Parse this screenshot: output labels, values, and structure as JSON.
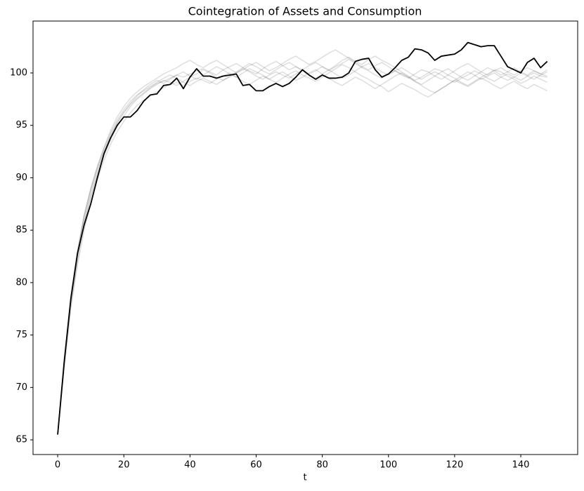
{
  "chart_data": {
    "type": "line",
    "title": "Cointegration of Assets and Consumption",
    "x_label": "t",
    "x": [
      0,
      2,
      4,
      6,
      8,
      10,
      12,
      14,
      16,
      18,
      20,
      22,
      24,
      26,
      28,
      30,
      32,
      34,
      36,
      38,
      40,
      42,
      44,
      46,
      48,
      50,
      52,
      54,
      56,
      58,
      60,
      62,
      64,
      66,
      68,
      70,
      72,
      74,
      76,
      78,
      80,
      82,
      84,
      86,
      88,
      90,
      92,
      94,
      96,
      98,
      100,
      102,
      104,
      106,
      108,
      110,
      112,
      114,
      116,
      118,
      120,
      122,
      124,
      126,
      128,
      130,
      132,
      134,
      136,
      138,
      140,
      142,
      144,
      146,
      148
    ],
    "xlim": [
      -7.45,
      157.2
    ],
    "xticks": [
      0,
      20,
      40,
      60,
      80,
      100,
      120,
      140
    ],
    "ylim": [
      63.6,
      104.95
    ],
    "yticks": [
      65,
      70,
      75,
      80,
      85,
      90,
      95,
      100
    ],
    "series": [
      {
        "color": "#000000",
        "opacity": 0.13,
        "values": [
          65.5,
          72.3,
          78.2,
          82.4,
          85.8,
          88.3,
          90.5,
          92.4,
          93.9,
          95.2,
          96.2,
          97,
          97.6,
          98.1,
          98.6,
          99,
          99.2,
          99.5,
          99.8,
          99.6,
          99.9,
          100.2,
          100.4,
          100.1,
          99.8,
          100.3,
          100.6,
          100.9,
          100.5,
          100.2,
          99.9,
          100.4,
          100.8,
          101.1,
          100.7,
          100.3,
          100.6,
          100.2,
          99.8,
          99.5,
          99.9,
          100.3,
          100.7,
          101.2,
          101.5,
          101.1,
          100.8,
          101.3,
          101.6,
          101.2,
          100.9,
          100.5,
          100.1,
          99.7,
          99.3,
          99.6,
          100,
          100.4,
          100.2,
          99.8,
          99.5,
          99.1,
          98.8,
          99.2,
          99.6,
          99.9,
          100.3,
          100.1,
          99.7,
          99.4,
          99,
          99.3,
          99.7,
          99.4,
          99.1
        ]
      },
      {
        "color": "#000000",
        "opacity": 0.13,
        "values": [
          65.5,
          72,
          77.6,
          81.7,
          85,
          87.6,
          89.8,
          91.7,
          93.2,
          94.4,
          95.4,
          96.2,
          96.9,
          97.4,
          97.8,
          98.2,
          98.6,
          98.9,
          99.1,
          98.8,
          99.2,
          99.5,
          99.3,
          99,
          99.4,
          99.7,
          100,
          99.6,
          99.2,
          98.9,
          99.3,
          99.7,
          99.4,
          99.8,
          100.1,
          99.7,
          99.3,
          99.6,
          100,
          100.3,
          99.9,
          99.5,
          99.1,
          98.8,
          99.2,
          99.6,
          99.3,
          98.9,
          98.5,
          98.9,
          99.3,
          99.7,
          100,
          99.6,
          99.2,
          98.8,
          98.4,
          98.1,
          98.5,
          98.9,
          99.3,
          99,
          98.7,
          99.1,
          99.5,
          99.2,
          98.8,
          98.5,
          98.9,
          99.2,
          98.8,
          98.5,
          98.9,
          98.6,
          98.3
        ]
      },
      {
        "color": "#000000",
        "opacity": 0.13,
        "values": [
          65.5,
          72.8,
          78.8,
          83.1,
          86.5,
          89,
          91.1,
          92.9,
          94.5,
          95.8,
          96.8,
          97.6,
          98.2,
          98.7,
          99.1,
          99.5,
          99.9,
          100.2,
          100.5,
          100.9,
          101.2,
          100.8,
          100.5,
          100.9,
          101.2,
          100.8,
          100.4,
          100,
          100.3,
          100.7,
          101,
          100.6,
          100.2,
          100.5,
          100.9,
          101.3,
          101.6,
          101.2,
          100.8,
          101.1,
          101.5,
          101.9,
          102.2,
          101.8,
          101.4,
          101,
          100.6,
          100.3,
          100.7,
          101,
          100.6,
          100.2,
          99.8,
          99.5,
          99.9,
          100.3,
          100.1,
          99.7,
          99.4,
          99.8,
          100.2,
          100.6,
          100.9,
          100.5,
          100.1,
          99.8,
          100.2,
          100.5,
          100.1,
          99.8,
          100.2,
          100.5,
          100.2,
          99.9,
          100.3
        ]
      },
      {
        "color": "#000000",
        "opacity": 0.13,
        "values": [
          65.5,
          72.5,
          78.4,
          82.8,
          86.2,
          88.7,
          90.8,
          92.6,
          94.1,
          95.3,
          96.3,
          97.1,
          97.8,
          98.4,
          98.9,
          99.3,
          99,
          99.4,
          99.8,
          100.1,
          99.7,
          99.4,
          99.8,
          100.2,
          100.6,
          100.3,
          99.9,
          99.6,
          100,
          100.4,
          100.1,
          99.8,
          99.4,
          99.1,
          99.5,
          99.9,
          100.2,
          99.8,
          99.5,
          99.2,
          99.6,
          100,
          100.4,
          100.8,
          100.5,
          100.1,
          99.7,
          99.4,
          99,
          98.7,
          98.2,
          98.6,
          99,
          98.7,
          98.4,
          98,
          97.7,
          98.1,
          98.5,
          98.9,
          99.3,
          99.7,
          100.1,
          99.8,
          99.4,
          99.7,
          100,
          99.6,
          99.3,
          99.6,
          100,
          99.7,
          99.4,
          99.8,
          100.1
        ]
      },
      {
        "color": "#000000",
        "opacity": 0.13,
        "values": [
          65.5,
          72.1,
          77.9,
          82.1,
          85.6,
          88.1,
          90.2,
          92.1,
          93.6,
          94.9,
          95.9,
          96.8,
          97.5,
          98,
          98.5,
          98.9,
          99.3,
          99.1,
          98.8,
          99.2,
          99.6,
          99.9,
          100.3,
          100,
          99.6,
          99.3,
          99.7,
          100.1,
          100.5,
          100.9,
          100.6,
          100.2,
          99.9,
          100.3,
          100.7,
          101,
          100.6,
          100.3,
          99.9,
          100.2,
          100.6,
          100.3,
          99.9,
          99.5,
          99.8,
          100.2,
          100.6,
          100.9,
          100.5,
          100.1,
          99.8,
          100.2,
          100.5,
          100.1,
          99.7,
          99.4,
          99.8,
          100.1,
          99.8,
          99.4,
          99.1,
          99.5,
          99.8,
          100.2,
          99.9,
          99.5,
          99.2,
          99.6,
          99.9,
          99.6,
          99.3,
          99.7,
          100,
          99.7,
          99.6
        ]
      },
      {
        "color": "#000000",
        "opacity": 0.13,
        "values": [
          65.5,
          72.6,
          78.6,
          82.9,
          86.3,
          88.9,
          91,
          92.8,
          94.3,
          95.5,
          96.5,
          97.3,
          97.9,
          98.3,
          98.7,
          99.1,
          99.5,
          99.8,
          99.5,
          99.1,
          98.8,
          99.2,
          99.5,
          99.2,
          98.9,
          99.3,
          99.6,
          100,
          100.4,
          100.1,
          99.7,
          99.4,
          99.8,
          100.1,
          99.8,
          99.5,
          99.9,
          100.3,
          100.7,
          101,
          100.6,
          100.2,
          100.6,
          100.9,
          101.3,
          100.9,
          100.5,
          100.2,
          99.8,
          99.5,
          99.9,
          100.2,
          99.9,
          99.6,
          99.2,
          98.9,
          99.3,
          99.7,
          100.1,
          100.4,
          100,
          99.6,
          99.3,
          99.7,
          100.1,
          100.5,
          100.2,
          99.8,
          100.1,
          100.5,
          100.1,
          99.8,
          100.2,
          99.9,
          99.7
        ]
      },
      {
        "color": "#000000",
        "opacity": 1,
        "values": [
          65.5,
          72.5,
          78.5,
          82.8,
          85.5,
          87.5,
          90,
          92.3,
          93.8,
          95,
          95.8,
          95.8,
          96.4,
          97.3,
          97.9,
          98,
          98.8,
          98.9,
          99.5,
          98.5,
          99.6,
          100.4,
          99.7,
          99.7,
          99.5,
          99.7,
          99.8,
          99.9,
          98.8,
          98.9,
          98.3,
          98.3,
          98.7,
          99,
          98.7,
          99,
          99.6,
          100.3,
          99.8,
          99.4,
          99.8,
          99.5,
          99.5,
          99.6,
          100,
          101.1,
          101.3,
          101.4,
          100.3,
          99.6,
          99.9,
          100.5,
          101.2,
          101.5,
          102.3,
          102.2,
          101.9,
          101.2,
          101.6,
          101.7,
          101.8,
          102.2,
          102.9,
          102.7,
          102.5,
          102.6,
          102.6,
          101.6,
          100.6,
          100.3,
          100,
          101,
          101.4,
          100.5,
          101.1
        ]
      }
    ]
  }
}
